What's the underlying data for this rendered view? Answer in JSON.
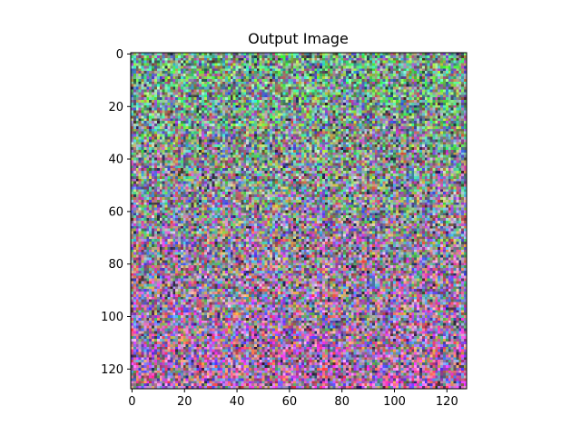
{
  "chart_data": {
    "type": "heatmap",
    "title": "Output Image",
    "xlabel": "",
    "ylabel": "",
    "image_size": [
      128,
      128
    ],
    "xlim": [
      -0.5,
      127.5
    ],
    "ylim": [
      127.5,
      -0.5
    ],
    "y_axis_inverted": true,
    "xticks": [
      0,
      20,
      40,
      60,
      80,
      100,
      120
    ],
    "yticks": [
      0,
      20,
      40,
      60,
      80,
      100,
      120
    ],
    "x_tick_labels": [
      "0",
      "20",
      "40",
      "60",
      "80",
      "100",
      "120"
    ],
    "y_tick_labels": [
      "0",
      "20",
      "40",
      "60",
      "80",
      "100",
      "120"
    ],
    "grid": false,
    "legend": "none",
    "content": "random-looking RGB noise image; greenish/teal tones dominate the upper half, pink/magenta/purple tones dominate the lower half"
  }
}
